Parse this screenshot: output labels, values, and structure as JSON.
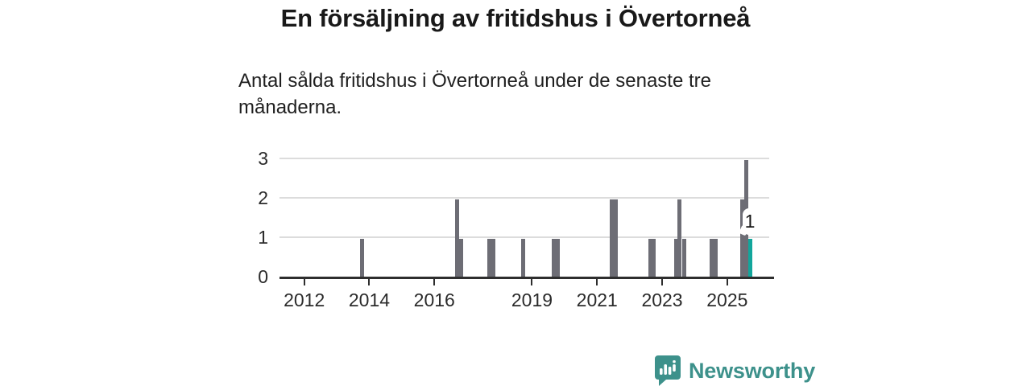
{
  "header": {
    "title": "En försäljning av fritidshus i Övertorneå",
    "subtitle": "Antal sålda fritidshus i Övertorneå under de senaste tre månaderna.",
    "subtitle_lines": {
      "0": "Antal sålda fritidshus i Övertorneå under de senaste tre",
      "1": "månaderna."
    }
  },
  "chart_data": {
    "type": "bar",
    "title": "En försäljning av fritidshus i Övertorneå",
    "subtitle": "Antal sålda fritidshus i Övertorneå under de senaste tre månaderna.",
    "xlabel": "",
    "ylabel": "",
    "x_unit": "decimal_year",
    "xlim": [
      2011.24,
      2026.44
    ],
    "ylim": [
      0,
      3
    ],
    "yticks": [
      0,
      1,
      2,
      3
    ],
    "xtick_labels": [
      "2012",
      "2014",
      "2016",
      "2019",
      "2021",
      "2023",
      "2025"
    ],
    "xtick_years": [
      2012,
      2014,
      2016,
      2019,
      2021,
      2023,
      2025
    ],
    "grid": "horizontal",
    "legend": "none",
    "bars": [
      {
        "x": 2013.77,
        "value": 1
      },
      {
        "x": 2016.7,
        "value": 2
      },
      {
        "x": 2016.83,
        "value": 1
      },
      {
        "x": 2017.7,
        "value": 1
      },
      {
        "x": 2017.81,
        "value": 1
      },
      {
        "x": 2018.72,
        "value": 1
      },
      {
        "x": 2019.68,
        "value": 1
      },
      {
        "x": 2019.79,
        "value": 1
      },
      {
        "x": 2021.45,
        "value": 2
      },
      {
        "x": 2021.58,
        "value": 2
      },
      {
        "x": 2022.63,
        "value": 1
      },
      {
        "x": 2022.75,
        "value": 1
      },
      {
        "x": 2023.43,
        "value": 1
      },
      {
        "x": 2023.54,
        "value": 2
      },
      {
        "x": 2023.68,
        "value": 1
      },
      {
        "x": 2024.53,
        "value": 1
      },
      {
        "x": 2024.65,
        "value": 1
      },
      {
        "x": 2025.47,
        "value": 2
      },
      {
        "x": 2025.58,
        "value": 3
      },
      {
        "x": 2025.7,
        "value": 1,
        "highlight": true,
        "label": "1"
      }
    ],
    "colors": {
      "bar": "#6d6d75",
      "highlight": "#12a69c"
    },
    "last_point_label": "1"
  },
  "footer": {
    "brand": "Newsworthy",
    "brand_color": "#3d918b",
    "logo_icon": "newsworthy-speech-bubble-bar-chart"
  }
}
